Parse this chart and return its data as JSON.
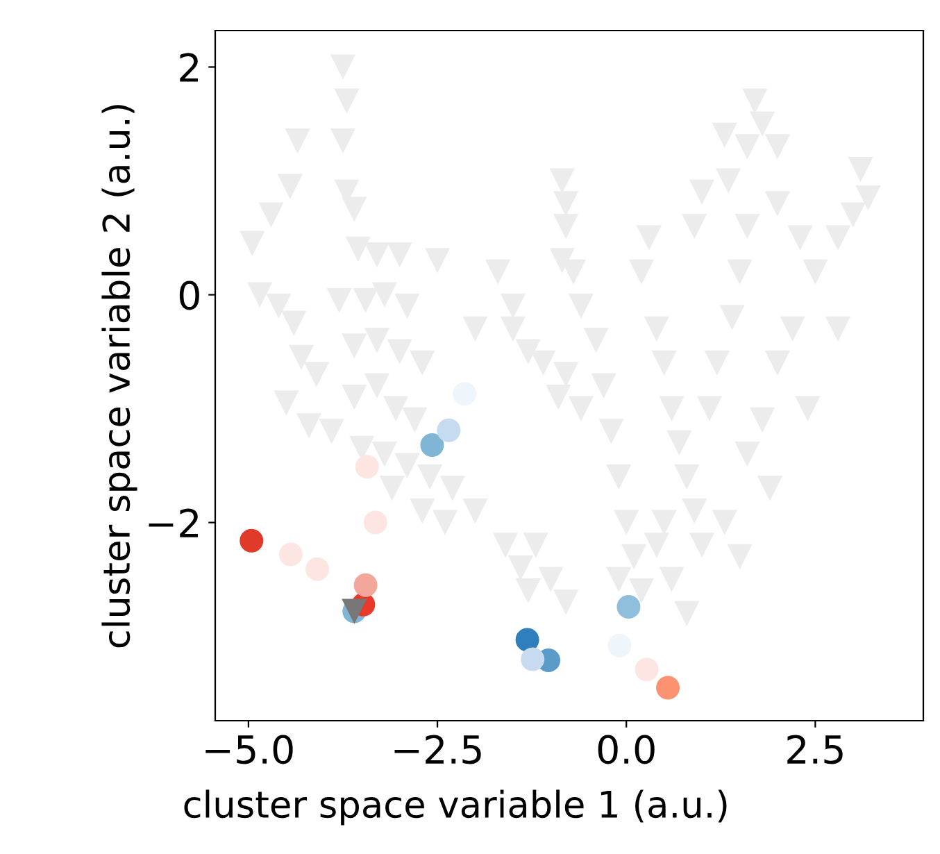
{
  "chart_data": {
    "type": "scatter",
    "xlabel": "cluster space variable 1 (a.u.)",
    "ylabel": "cluster space variable 2 (a.u.)",
    "xlim": [
      -5.44,
      3.93
    ],
    "ylim": [
      -3.74,
      2.32
    ],
    "xticks": [
      {
        "value": -5,
        "label": "−5.0"
      },
      {
        "value": -2.5,
        "label": "−2.5"
      },
      {
        "value": 0,
        "label": "0.0"
      },
      {
        "value": 2.5,
        "label": "2.5"
      }
    ],
    "yticks": [
      {
        "value": -2,
        "label": "−2"
      },
      {
        "value": 0,
        "label": "0"
      },
      {
        "value": 2,
        "label": "2"
      }
    ],
    "grid": false,
    "legend": false,
    "series": [
      {
        "marker": "triangle",
        "color": "#ececec",
        "x": [
          -3.75,
          -3.7,
          -4.35,
          -3.75,
          -4.45,
          -4.7,
          -3.7,
          -3.6,
          -4.95,
          -3.55,
          -3.3,
          -3.0,
          -2.5,
          -4.85,
          -4.6,
          -4.4,
          -3.8,
          -3.45,
          -3.2,
          -2.9,
          -4.3,
          -4.1,
          -3.6,
          -3.3,
          -3.0,
          -2.7,
          -4.5,
          -4.2,
          -3.9,
          -3.6,
          -3.3,
          -3.05,
          -2.8,
          -3.5,
          -3.2,
          -2.9,
          -2.6,
          -2.3,
          -3.1,
          -2.7,
          -2.4,
          -2.0,
          -2.0,
          -1.5,
          -1.3,
          -1.1,
          -0.8,
          -1.5,
          -1.7,
          -0.9,
          -0.6,
          -1.2,
          -1.4,
          -1.0,
          -0.8,
          -1.3,
          -1.6,
          -0.85,
          -0.8,
          -0.8,
          -0.85,
          -0.7,
          -0.6,
          -0.4,
          -0.3,
          -0.2,
          -0.1,
          0.0,
          0.1,
          -0.1,
          0.2,
          0.4,
          0.5,
          0.3,
          0.2,
          0.4,
          0.5,
          0.6,
          0.7,
          0.8,
          0.9,
          1.0,
          0.6,
          1.1,
          1.2,
          1.4,
          1.5,
          1.6,
          1.35,
          1.6,
          1.7,
          1.8,
          2.0,
          1.3,
          1.0,
          0.9,
          2.0,
          2.3,
          2.5,
          2.2,
          2.0,
          1.8,
          1.6,
          1.9,
          2.4,
          2.8,
          3.0,
          3.2,
          3.1,
          2.8,
          1.3,
          1.5,
          0.8
        ],
        "values": [
          2.0,
          1.7,
          1.35,
          1.35,
          0.95,
          0.7,
          0.9,
          0.75,
          0.45,
          0.4,
          0.35,
          0.35,
          0.3,
          0.0,
          -0.1,
          -0.25,
          -0.05,
          -0.05,
          0.0,
          -0.1,
          -0.55,
          -0.7,
          -0.45,
          -0.4,
          -0.5,
          -0.6,
          -0.95,
          -1.15,
          -1.2,
          -0.9,
          -0.8,
          -1.0,
          -1.1,
          -1.35,
          -1.4,
          -1.5,
          -1.6,
          -1.7,
          -1.7,
          -1.9,
          -2.0,
          -1.9,
          -0.3,
          -0.3,
          -0.5,
          -0.6,
          -0.7,
          -0.1,
          0.2,
          -0.9,
          -1.0,
          -2.2,
          -2.4,
          -2.5,
          -2.7,
          -2.6,
          -2.2,
          1.0,
          0.8,
          0.6,
          0.3,
          0.2,
          -0.1,
          -0.4,
          -0.8,
          -1.2,
          -1.6,
          -2.0,
          -2.3,
          -2.5,
          -2.6,
          -2.2,
          -2.0,
          0.5,
          0.2,
          -0.3,
          -0.6,
          -1.0,
          -1.3,
          -1.6,
          -1.9,
          -2.2,
          -2.5,
          -1.0,
          -0.6,
          -0.2,
          0.2,
          0.6,
          1.0,
          1.3,
          1.7,
          1.5,
          1.3,
          1.4,
          0.9,
          0.6,
          0.8,
          0.5,
          0.2,
          -0.3,
          -0.6,
          -1.1,
          -1.4,
          -1.7,
          -1.0,
          0.5,
          0.7,
          0.85,
          1.1,
          -0.3,
          -2.0,
          -2.3,
          -2.8
        ]
      },
      {
        "marker": "circle",
        "x": [
          -2.57,
          -3.6,
          -1.31,
          -1.03,
          0.03,
          -2.35,
          -1.24,
          -0.09,
          -2.14
        ],
        "values": [
          -1.32,
          -2.78,
          -3.03,
          -3.21,
          -2.74,
          -1.19,
          -3.2,
          -3.08,
          -0.87
        ],
        "colors": [
          "#7fb5d5",
          "#7fb5d5",
          "#2f7fbf",
          "#5b9bc9",
          "#8fbfda",
          "#c6dbef",
          "#c6dbef",
          "#eef5fb",
          "#eef5fb"
        ]
      },
      {
        "marker": "circle",
        "x": [
          -4.96,
          -3.48,
          -3.45,
          -4.44,
          -4.09,
          -3.32,
          -3.43,
          0.55,
          0.27
        ],
        "values": [
          -2.16,
          -2.72,
          -2.55,
          -2.28,
          -2.41,
          -2.0,
          -1.51,
          -3.45,
          -3.29
        ],
        "colors": [
          "#e03a2a",
          "#e8392a",
          "#f3a79a",
          "#fde6e1",
          "#fde6e1",
          "#fde6e1",
          "#fde6e1",
          "#fc9272",
          "#fde6e1"
        ]
      },
      {
        "marker": "triangle",
        "color": "#777777",
        "x": [
          -3.6
        ],
        "values": [
          -2.78
        ]
      }
    ]
  }
}
